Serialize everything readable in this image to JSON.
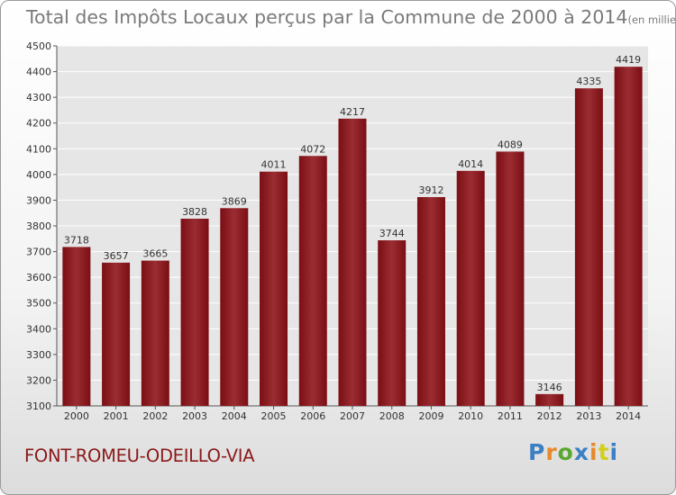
{
  "title": "Total des Impôts Locaux perçus par la Commune de 2000 à 2014",
  "unit": "(en milliers d'€)",
  "commune": "FONT-ROMEU-ODEILLO-VIA",
  "logo": {
    "letters": [
      "P",
      "r",
      "o",
      "x",
      "i",
      "t",
      "i"
    ],
    "colors": [
      "#3b7fc4",
      "#e8892b",
      "#5aa832",
      "#3b7fc4",
      "#e8892b",
      "#d2cf1a",
      "#3b7fc4"
    ]
  },
  "colors": {
    "bar": "#7a0e14",
    "bar_light": "#9b2d32",
    "plot_bg": "#e6e6e6",
    "grid": "#ffffff"
  },
  "chart_data": {
    "type": "bar",
    "categories": [
      "2000",
      "2001",
      "2002",
      "2003",
      "2004",
      "2005",
      "2006",
      "2007",
      "2008",
      "2009",
      "2010",
      "2011",
      "2012",
      "2013",
      "2014"
    ],
    "values": [
      3718,
      3657,
      3665,
      3828,
      3869,
      4011,
      4072,
      4217,
      3744,
      3912,
      4014,
      4089,
      3146,
      4335,
      4419
    ],
    "data_labels": [
      "3718",
      "3657",
      "3665",
      "3828",
      "3869",
      "4011",
      "4072",
      "4217",
      "3744",
      "3912",
      "4014",
      "4089",
      "3146",
      "4335",
      "4419"
    ],
    "ylim": [
      3100,
      4500
    ],
    "yticks": [
      "3100",
      "3200",
      "3300",
      "3400",
      "3500",
      "3600",
      "3700",
      "3800",
      "3900",
      "4000",
      "4100",
      "4200",
      "4300",
      "4400",
      "4500"
    ],
    "grid": true
  }
}
